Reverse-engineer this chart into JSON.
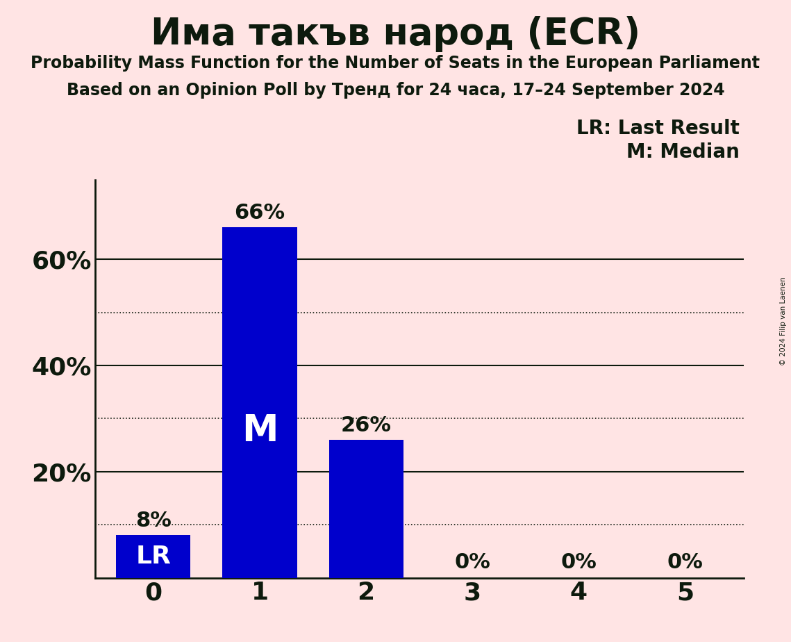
{
  "title": "Има такъв народ (ECR)",
  "subtitle1": "Probability Mass Function for the Number of Seats in the European Parliament",
  "subtitle2": "Based on an Opinion Poll by Тренд for 24 часа, 17–24 September 2024",
  "copyright": "© 2024 Filip van Laenen",
  "categories": [
    0,
    1,
    2,
    3,
    4,
    5
  ],
  "values": [
    0.08,
    0.66,
    0.26,
    0.0,
    0.0,
    0.0
  ],
  "bar_color": "#0000CC",
  "background_color": "#FFE4E4",
  "text_color": "#0d1a0d",
  "lr_bar": 0,
  "median_bar": 1,
  "legend_lr": "LR: Last Result",
  "legend_m": "M: Median",
  "yticks": [
    0.0,
    0.2,
    0.4,
    0.6
  ],
  "ytick_labels": [
    "",
    "20%",
    "40%",
    "60%"
  ],
  "solid_lines": [
    0.2,
    0.4,
    0.6
  ],
  "dotted_lines": [
    0.1,
    0.3,
    0.5
  ],
  "ylim": [
    0,
    0.75
  ],
  "bar_width": 0.7
}
